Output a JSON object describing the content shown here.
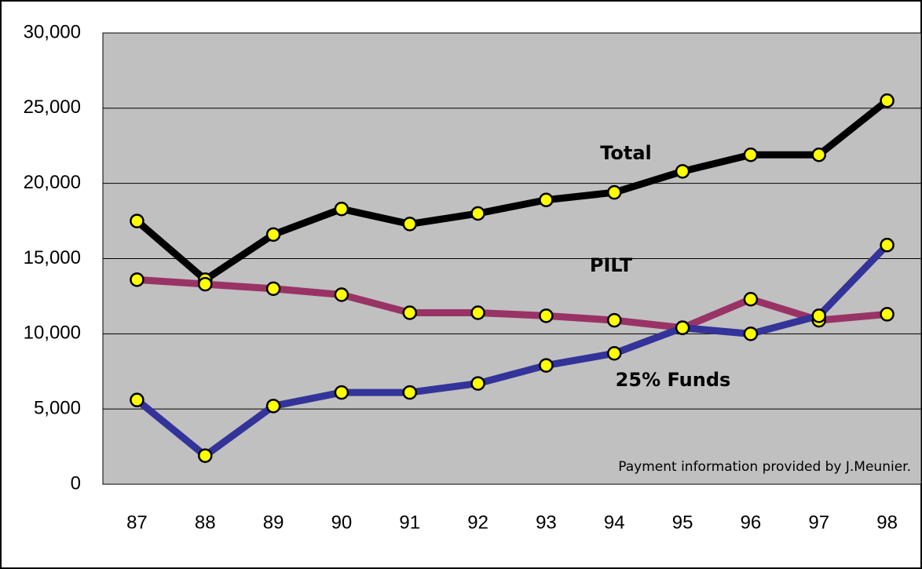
{
  "chart_data": {
    "type": "line",
    "categories": [
      "87",
      "88",
      "89",
      "90",
      "91",
      "92",
      "93",
      "94",
      "95",
      "96",
      "97",
      "98"
    ],
    "series": [
      {
        "name": "Total",
        "color": "#000000",
        "values": [
          17500,
          13600,
          16600,
          18300,
          17300,
          18000,
          18900,
          19400,
          20800,
          21900,
          21900,
          25500
        ]
      },
      {
        "name": "PILT",
        "color": "#993366",
        "values": [
          13600,
          13300,
          13000,
          12600,
          11400,
          11400,
          11200,
          10900,
          10400,
          12300,
          10900,
          11300
        ]
      },
      {
        "name": "25% Funds",
        "color": "#333399",
        "values": [
          5600,
          1900,
          5200,
          6100,
          6100,
          6700,
          7900,
          8700,
          10400,
          10000,
          11200,
          15900
        ]
      }
    ],
    "annotation": "Payment information provided by J.Meunier.",
    "ylim": [
      0,
      30000
    ],
    "yticks": [
      0,
      {
        "value": 5000,
        "label": "5,000"
      },
      {
        "value": 10000,
        "label": "10,000"
      },
      {
        "value": 15000,
        "label": "15,000"
      },
      {
        "value": 20000,
        "label": "20,000"
      },
      {
        "value": 25000,
        "label": "25,000"
      },
      {
        "value": 30000,
        "label": "30,000"
      }
    ],
    "grid": true,
    "marker_color": "#ffff00",
    "plot_background": "#c0c0c0"
  }
}
